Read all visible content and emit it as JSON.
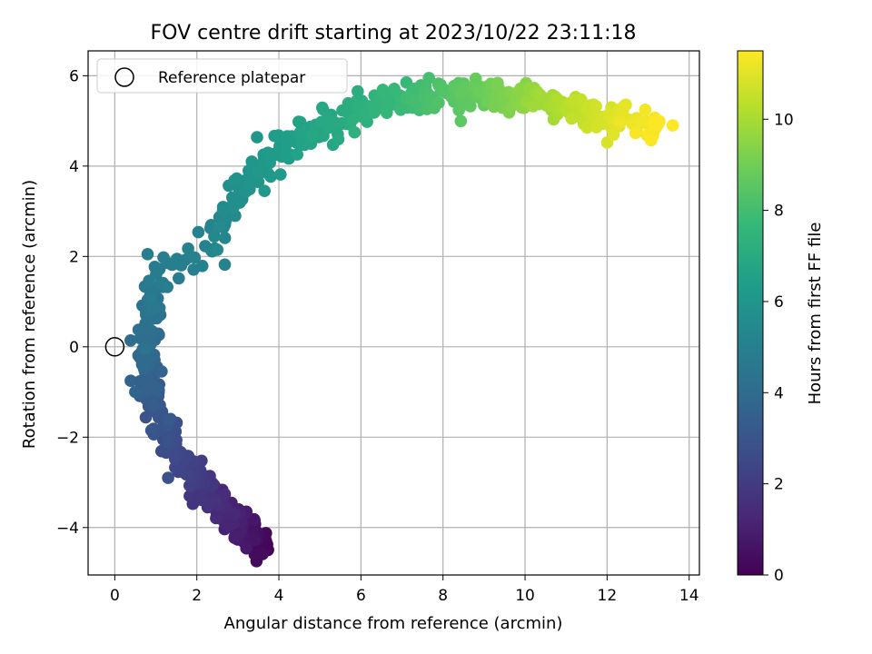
{
  "chart_data": {
    "type": "scatter",
    "title": "FOV centre drift starting at 2023/10/22 23:11:18",
    "xlabel": "Angular distance from reference (arcmin)",
    "ylabel": "Rotation from reference (arcmin)",
    "colorbar_label": "Hours from first FF file",
    "xlim": [
      -0.65,
      14.25
    ],
    "ylim": [
      -5.05,
      6.55
    ],
    "clim": [
      0,
      11.5
    ],
    "xticks": [
      "0",
      "2",
      "4",
      "6",
      "8",
      "10",
      "12",
      "14"
    ],
    "yticks": [
      "−4",
      "−2",
      "0",
      "2",
      "4",
      "6"
    ],
    "cticks": [
      "0",
      "2",
      "4",
      "6",
      "8",
      "10"
    ],
    "colormap": "viridis",
    "grid": true,
    "legend": {
      "position": "top-left",
      "label": "Reference platepar",
      "marker": "open-circle"
    },
    "reference_point": {
      "x": 0,
      "y": 0
    },
    "trajectory_knots": [
      {
        "t": 0.0,
        "x": 3.72,
        "y": -4.45,
        "jitter": 0.15
      },
      {
        "t": 0.8,
        "x": 3.1,
        "y": -4.05,
        "jitter": 0.2
      },
      {
        "t": 1.5,
        "x": 2.4,
        "y": -3.4,
        "jitter": 0.22
      },
      {
        "t": 2.3,
        "x": 1.7,
        "y": -2.6,
        "jitter": 0.2
      },
      {
        "t": 3.0,
        "x": 1.1,
        "y": -1.6,
        "jitter": 0.18
      },
      {
        "t": 3.6,
        "x": 0.7,
        "y": -0.6,
        "jitter": 0.22
      },
      {
        "t": 4.2,
        "x": 0.85,
        "y": 0.4,
        "jitter": 0.2
      },
      {
        "t": 4.8,
        "x": 1.0,
        "y": 1.5,
        "jitter": 0.16
      },
      {
        "t": 5.2,
        "x": 2.5,
        "y": 2.4,
        "jitter": 0.2
      },
      {
        "t": 5.8,
        "x": 3.1,
        "y": 3.6,
        "jitter": 0.22
      },
      {
        "t": 6.4,
        "x": 4.2,
        "y": 4.4,
        "jitter": 0.22
      },
      {
        "t": 7.0,
        "x": 5.5,
        "y": 5.0,
        "jitter": 0.22
      },
      {
        "t": 7.6,
        "x": 6.8,
        "y": 5.5,
        "jitter": 0.18
      },
      {
        "t": 8.3,
        "x": 8.0,
        "y": 5.6,
        "jitter": 0.15
      },
      {
        "t": 9.0,
        "x": 9.2,
        "y": 5.6,
        "jitter": 0.15
      },
      {
        "t": 9.8,
        "x": 10.4,
        "y": 5.4,
        "jitter": 0.18
      },
      {
        "t": 10.6,
        "x": 11.6,
        "y": 5.2,
        "jitter": 0.2
      },
      {
        "t": 11.5,
        "x": 13.2,
        "y": 4.8,
        "jitter": 0.2
      }
    ],
    "outlier_points": [
      {
        "t": 4.9,
        "x": 0.8,
        "y": 2.05
      },
      {
        "t": 11.5,
        "x": 13.6,
        "y": 4.9
      },
      {
        "t": 5.4,
        "x": 2.5,
        "y": 2.15
      },
      {
        "t": 2.8,
        "x": 1.3,
        "y": -2.9
      },
      {
        "t": 6.2,
        "x": 3.65,
        "y": 3.45
      },
      {
        "t": 3.7,
        "x": 0.5,
        "y": -1.0
      }
    ],
    "n_points": 700
  }
}
